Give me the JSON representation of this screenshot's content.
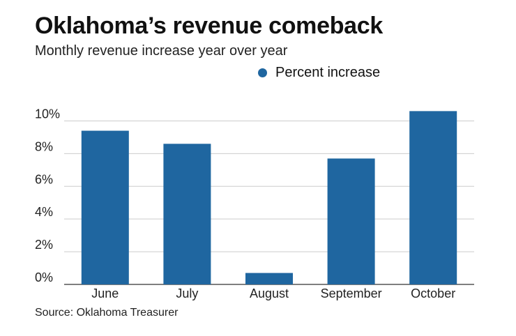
{
  "header": {
    "title": "Oklahoma’s revenue comeback",
    "subtitle": "Monthly revenue increase year over year"
  },
  "legend": {
    "label": "Percent increase"
  },
  "source": "Source: Oklahoma Treasurer",
  "colors": {
    "bar": "#1f66a0",
    "grid": "#cccccc",
    "axis": "#333333"
  },
  "chart_data": {
    "type": "bar",
    "title": "Oklahoma’s revenue comeback",
    "subtitle": "Monthly revenue increase year over year",
    "xlabel": "",
    "ylabel": "",
    "categories": [
      "June",
      "July",
      "August",
      "September",
      "October"
    ],
    "series": [
      {
        "name": "Percent increase",
        "values": [
          9.4,
          8.6,
          0.7,
          7.7,
          10.6
        ]
      }
    ],
    "yticks": [
      0,
      2,
      4,
      6,
      8,
      10
    ],
    "ytick_labels": [
      "0%",
      "2%",
      "4%",
      "6%",
      "8%",
      "10%"
    ],
    "ylim": [
      0,
      11
    ],
    "grid": true,
    "legend": "top-right"
  }
}
